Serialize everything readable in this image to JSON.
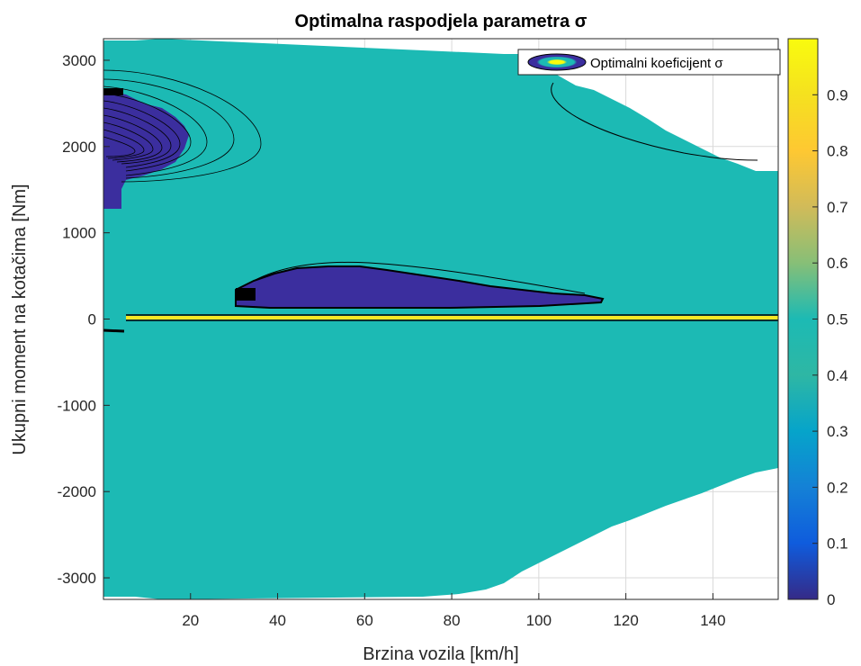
{
  "chart_data": {
    "type": "heatmap",
    "title": "Optimalna raspodjela parametra σ",
    "xlabel": "Brzina vozila [km/h]",
    "ylabel": "Ukupni moment na kotačima [Nm]",
    "xlim": [
      0,
      155
    ],
    "ylim": [
      -3250,
      3250
    ],
    "x_ticks": [
      "20",
      "40",
      "60",
      "80",
      "100",
      "120",
      "140"
    ],
    "y_ticks": [
      "-3000",
      "-2000",
      "-1000",
      "0",
      "1000",
      "2000",
      "3000"
    ],
    "colorbar": {
      "min": 0,
      "max": 1,
      "ticks": [
        "0",
        "0.1",
        "0.2",
        "0.3",
        "0.4",
        "0.5",
        "0.6",
        "0.7",
        "0.8",
        "0.9"
      ]
    },
    "grid": true,
    "legend": {
      "position": "top-right",
      "entries": [
        "Optimalni koeficijent σ"
      ]
    },
    "dominant_value": 0.5,
    "regions": [
      {
        "name": "low-sigma-region",
        "sigma": 0.05,
        "x_range": [
          30,
          115
        ],
        "y_range": [
          150,
          620
        ]
      },
      {
        "name": "low-sigma-region",
        "sigma": 0.1,
        "x_range": [
          0,
          8
        ],
        "y_range": [
          1300,
          2700
        ]
      },
      {
        "name": "high-sigma-band",
        "sigma": 0.85,
        "x_range": [
          25,
          155
        ],
        "y_range": [
          20,
          50
        ]
      }
    ]
  },
  "colors": {
    "background": "#ffffff",
    "teal": "#1CBAB4",
    "dark_blue": "#3B2E9E",
    "yellow": "#F6E826",
    "grid": "#d9d9d9"
  }
}
